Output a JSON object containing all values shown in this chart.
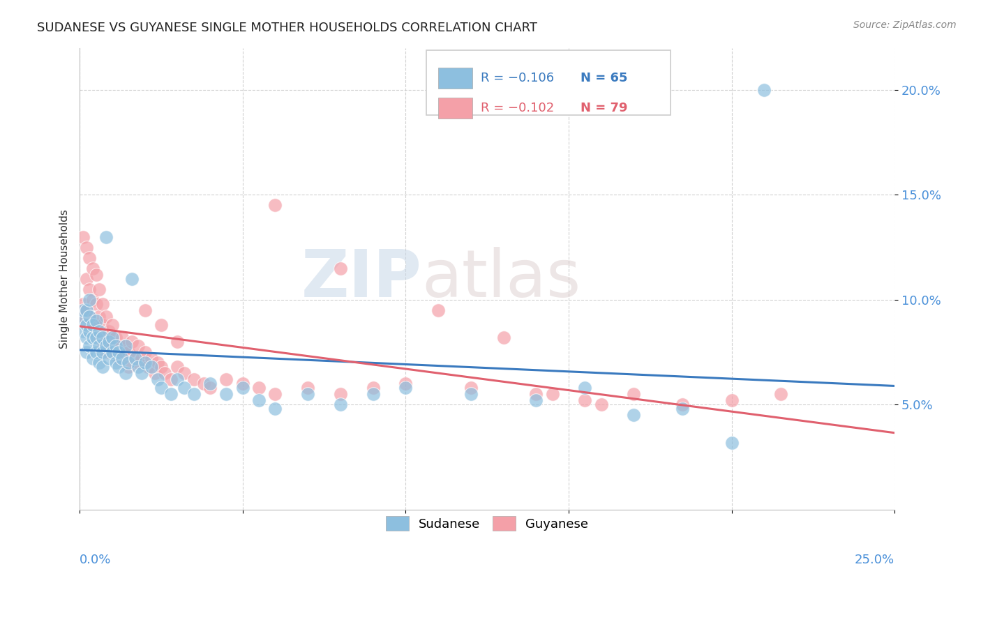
{
  "title": "SUDANESE VS GUYANESE SINGLE MOTHER HOUSEHOLDS CORRELATION CHART",
  "source": "Source: ZipAtlas.com",
  "ylabel": "Single Mother Households",
  "xlim": [
    0.0,
    0.25
  ],
  "ylim": [
    0.0,
    0.22
  ],
  "yticks": [
    0.05,
    0.1,
    0.15,
    0.2
  ],
  "ytick_labels": [
    "5.0%",
    "10.0%",
    "15.0%",
    "20.0%"
  ],
  "watermark_zip": "ZIP",
  "watermark_atlas": "atlas",
  "legend_r_blue": "R = −0.106",
  "legend_n_blue": "N = 65",
  "legend_r_pink": "R = −0.102",
  "legend_n_pink": "N = 79",
  "blue_scatter_color": "#8dbfdf",
  "pink_scatter_color": "#f4a0a8",
  "blue_line_color": "#3a7abf",
  "pink_line_color": "#e0606e",
  "blue_tick_color": "#4a90d9",
  "sudanese_x": [
    0.001,
    0.001,
    0.001,
    0.002,
    0.002,
    0.002,
    0.002,
    0.003,
    0.003,
    0.003,
    0.003,
    0.004,
    0.004,
    0.004,
    0.005,
    0.005,
    0.005,
    0.006,
    0.006,
    0.006,
    0.007,
    0.007,
    0.007,
    0.008,
    0.008,
    0.009,
    0.009,
    0.01,
    0.01,
    0.011,
    0.011,
    0.012,
    0.012,
    0.013,
    0.014,
    0.014,
    0.015,
    0.016,
    0.017,
    0.018,
    0.019,
    0.02,
    0.022,
    0.024,
    0.025,
    0.028,
    0.03,
    0.032,
    0.035,
    0.04,
    0.045,
    0.05,
    0.055,
    0.06,
    0.07,
    0.08,
    0.09,
    0.1,
    0.12,
    0.14,
    0.155,
    0.17,
    0.185,
    0.2,
    0.21
  ],
  "sudanese_y": [
    0.085,
    0.09,
    0.095,
    0.075,
    0.082,
    0.088,
    0.095,
    0.078,
    0.085,
    0.092,
    0.1,
    0.072,
    0.082,
    0.088,
    0.075,
    0.082,
    0.09,
    0.07,
    0.078,
    0.085,
    0.068,
    0.075,
    0.082,
    0.13,
    0.078,
    0.072,
    0.08,
    0.075,
    0.082,
    0.07,
    0.078,
    0.068,
    0.075,
    0.072,
    0.065,
    0.078,
    0.07,
    0.11,
    0.072,
    0.068,
    0.065,
    0.07,
    0.068,
    0.062,
    0.058,
    0.055,
    0.062,
    0.058,
    0.055,
    0.06,
    0.055,
    0.058,
    0.052,
    0.048,
    0.055,
    0.05,
    0.055,
    0.058,
    0.055,
    0.052,
    0.058,
    0.045,
    0.048,
    0.032,
    0.2
  ],
  "guyanese_x": [
    0.001,
    0.001,
    0.001,
    0.002,
    0.002,
    0.002,
    0.003,
    0.003,
    0.003,
    0.004,
    0.004,
    0.004,
    0.005,
    0.005,
    0.005,
    0.006,
    0.006,
    0.006,
    0.007,
    0.007,
    0.007,
    0.008,
    0.008,
    0.008,
    0.009,
    0.009,
    0.01,
    0.01,
    0.011,
    0.011,
    0.012,
    0.012,
    0.013,
    0.013,
    0.014,
    0.015,
    0.015,
    0.016,
    0.017,
    0.018,
    0.018,
    0.019,
    0.02,
    0.021,
    0.022,
    0.023,
    0.024,
    0.025,
    0.026,
    0.028,
    0.03,
    0.032,
    0.035,
    0.038,
    0.04,
    0.045,
    0.05,
    0.055,
    0.06,
    0.07,
    0.08,
    0.09,
    0.1,
    0.12,
    0.14,
    0.155,
    0.17,
    0.185,
    0.2,
    0.215,
    0.02,
    0.025,
    0.03,
    0.06,
    0.08,
    0.11,
    0.13,
    0.145,
    0.16
  ],
  "guyanese_y": [
    0.13,
    0.098,
    0.092,
    0.125,
    0.11,
    0.095,
    0.12,
    0.105,
    0.092,
    0.115,
    0.1,
    0.088,
    0.112,
    0.098,
    0.088,
    0.105,
    0.092,
    0.082,
    0.098,
    0.088,
    0.078,
    0.092,
    0.082,
    0.075,
    0.085,
    0.078,
    0.088,
    0.078,
    0.082,
    0.075,
    0.078,
    0.072,
    0.082,
    0.075,
    0.078,
    0.075,
    0.068,
    0.08,
    0.072,
    0.078,
    0.07,
    0.072,
    0.075,
    0.068,
    0.072,
    0.065,
    0.07,
    0.068,
    0.065,
    0.062,
    0.068,
    0.065,
    0.062,
    0.06,
    0.058,
    0.062,
    0.06,
    0.058,
    0.055,
    0.058,
    0.055,
    0.058,
    0.06,
    0.058,
    0.055,
    0.052,
    0.055,
    0.05,
    0.052,
    0.055,
    0.095,
    0.088,
    0.08,
    0.145,
    0.115,
    0.095,
    0.082,
    0.055,
    0.05
  ]
}
